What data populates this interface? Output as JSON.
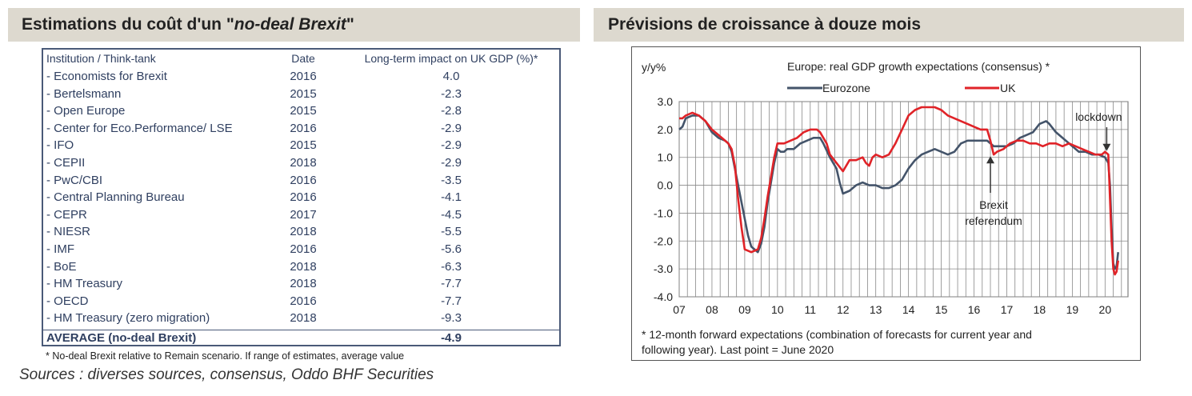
{
  "left_title_prefix": "Estimations du coût d'un \"",
  "left_title_italic": "no-deal Brexit",
  "left_title_suffix": "\"",
  "right_title": "Prévisions de croissance à douze mois",
  "table": {
    "headers": [
      "Institution / Think-tank",
      "Date",
      "Long-term impact on UK GDP (%)*"
    ],
    "rows": [
      {
        "name": "- Economists for Brexit",
        "date": "2016",
        "impact": "4.0"
      },
      {
        "name": "- Bertelsmann",
        "date": "2015",
        "impact": "-2.3"
      },
      {
        "name": "- Open Europe",
        "date": "2015",
        "impact": "-2.8"
      },
      {
        "name": "- Center for Eco.Performance/ LSE",
        "date": "2016",
        "impact": "-2.9"
      },
      {
        "name": "- IFO",
        "date": "2015",
        "impact": "-2.9"
      },
      {
        "name": "- CEPII",
        "date": "2018",
        "impact": "-2.9"
      },
      {
        "name": "- PwC/CBI",
        "date": "2016",
        "impact": "-3.5"
      },
      {
        "name": "- Central Planning Bureau",
        "date": "2016",
        "impact": "-4.1"
      },
      {
        "name": "- CEPR",
        "date": "2017",
        "impact": "-4.5"
      },
      {
        "name": "- NIESR",
        "date": "2018",
        "impact": "-5.5"
      },
      {
        "name": "- IMF",
        "date": "2016",
        "impact": "-5.6"
      },
      {
        "name": "- BoE",
        "date": "2018",
        "impact": "-6.3"
      },
      {
        "name": "- HM Treasury",
        "date": "2018",
        "impact": "-7.7"
      },
      {
        "name": "- OECD",
        "date": "2016",
        "impact": "-7.7"
      },
      {
        "name": "- HM Treasury (zero migration)",
        "date": "2018",
        "impact": "-9.3"
      }
    ],
    "average": {
      "name": "AVERAGE (no-deal Brexit)",
      "impact": "-4.9"
    },
    "footnote": "* No-deal Brexit relative to Remain scenario. If range of estimates, average value"
  },
  "sources": "Sources : diverses sources, consensus, Oddo BHF Securities",
  "chart_data": {
    "type": "line",
    "title": "Europe: real GDP growth expectations (consensus) *",
    "ylabel": "y/y%",
    "ylim": [
      -4.0,
      3.0
    ],
    "yticks": [
      "3.0",
      "2.0",
      "1.0",
      "0.0",
      "-1.0",
      "-2.0",
      "-3.0",
      "-4.0"
    ],
    "xlim": [
      2007.0,
      2020.7
    ],
    "xticks": [
      "07",
      "08",
      "09",
      "10",
      "11",
      "12",
      "13",
      "14",
      "15",
      "16",
      "17",
      "18",
      "19",
      "20"
    ],
    "grid": true,
    "legend": "top",
    "colors": {
      "Eurozone": "#44546a",
      "UK": "#e02328"
    },
    "series": [
      {
        "name": "Eurozone",
        "points": [
          [
            2007.0,
            2.0
          ],
          [
            2007.1,
            2.1
          ],
          [
            2007.2,
            2.4
          ],
          [
            2007.4,
            2.5
          ],
          [
            2007.6,
            2.5
          ],
          [
            2007.8,
            2.3
          ],
          [
            2008.0,
            1.9
          ],
          [
            2008.2,
            1.7
          ],
          [
            2008.4,
            1.6
          ],
          [
            2008.5,
            1.5
          ],
          [
            2008.6,
            1.2
          ],
          [
            2008.8,
            0.0
          ],
          [
            2009.0,
            -1.2
          ],
          [
            2009.1,
            -1.8
          ],
          [
            2009.2,
            -2.2
          ],
          [
            2009.4,
            -2.4
          ],
          [
            2009.5,
            -2.1
          ],
          [
            2009.6,
            -1.5
          ],
          [
            2009.7,
            -0.6
          ],
          [
            2009.8,
            0.1
          ],
          [
            2009.9,
            0.8
          ],
          [
            2010.0,
            1.3
          ],
          [
            2010.1,
            1.2
          ],
          [
            2010.2,
            1.2
          ],
          [
            2010.3,
            1.3
          ],
          [
            2010.5,
            1.3
          ],
          [
            2010.7,
            1.5
          ],
          [
            2010.9,
            1.6
          ],
          [
            2011.1,
            1.7
          ],
          [
            2011.3,
            1.7
          ],
          [
            2011.4,
            1.5
          ],
          [
            2011.6,
            1.0
          ],
          [
            2011.8,
            0.6
          ],
          [
            2011.9,
            0.1
          ],
          [
            2012.0,
            -0.3
          ],
          [
            2012.2,
            -0.2
          ],
          [
            2012.4,
            0.0
          ],
          [
            2012.6,
            0.1
          ],
          [
            2012.8,
            0.0
          ],
          [
            2013.0,
            0.0
          ],
          [
            2013.2,
            -0.1
          ],
          [
            2013.4,
            -0.1
          ],
          [
            2013.6,
            0.0
          ],
          [
            2013.8,
            0.2
          ],
          [
            2014.0,
            0.6
          ],
          [
            2014.2,
            0.9
          ],
          [
            2014.4,
            1.1
          ],
          [
            2014.6,
            1.2
          ],
          [
            2014.8,
            1.3
          ],
          [
            2015.0,
            1.2
          ],
          [
            2015.2,
            1.1
          ],
          [
            2015.4,
            1.2
          ],
          [
            2015.6,
            1.5
          ],
          [
            2015.8,
            1.6
          ],
          [
            2016.0,
            1.6
          ],
          [
            2016.2,
            1.6
          ],
          [
            2016.4,
            1.6
          ],
          [
            2016.5,
            1.5
          ],
          [
            2016.6,
            1.4
          ],
          [
            2016.8,
            1.4
          ],
          [
            2017.0,
            1.4
          ],
          [
            2017.2,
            1.5
          ],
          [
            2017.4,
            1.7
          ],
          [
            2017.6,
            1.8
          ],
          [
            2017.8,
            1.9
          ],
          [
            2018.0,
            2.2
          ],
          [
            2018.2,
            2.3
          ],
          [
            2018.3,
            2.2
          ],
          [
            2018.5,
            1.9
          ],
          [
            2018.7,
            1.7
          ],
          [
            2018.9,
            1.5
          ],
          [
            2019.0,
            1.4
          ],
          [
            2019.2,
            1.2
          ],
          [
            2019.4,
            1.2
          ],
          [
            2019.6,
            1.1
          ],
          [
            2019.8,
            1.1
          ],
          [
            2020.0,
            1.0
          ],
          [
            2020.1,
            0.8
          ],
          [
            2020.15,
            0.0
          ],
          [
            2020.2,
            -1.5
          ],
          [
            2020.25,
            -2.8
          ],
          [
            2020.3,
            -3.0
          ],
          [
            2020.35,
            -2.9
          ],
          [
            2020.4,
            -2.4
          ]
        ]
      },
      {
        "name": "UK",
        "points": [
          [
            2007.0,
            2.4
          ],
          [
            2007.1,
            2.4
          ],
          [
            2007.2,
            2.5
          ],
          [
            2007.4,
            2.6
          ],
          [
            2007.6,
            2.5
          ],
          [
            2007.8,
            2.3
          ],
          [
            2008.0,
            2.0
          ],
          [
            2008.2,
            1.8
          ],
          [
            2008.4,
            1.6
          ],
          [
            2008.5,
            1.5
          ],
          [
            2008.6,
            1.3
          ],
          [
            2008.7,
            0.7
          ],
          [
            2008.8,
            -0.5
          ],
          [
            2008.9,
            -1.5
          ],
          [
            2009.0,
            -2.3
          ],
          [
            2009.2,
            -2.4
          ],
          [
            2009.4,
            -2.3
          ],
          [
            2009.5,
            -1.9
          ],
          [
            2009.6,
            -1.2
          ],
          [
            2009.7,
            -0.4
          ],
          [
            2009.8,
            0.3
          ],
          [
            2009.9,
            1.0
          ],
          [
            2010.0,
            1.5
          ],
          [
            2010.2,
            1.5
          ],
          [
            2010.4,
            1.6
          ],
          [
            2010.6,
            1.7
          ],
          [
            2010.8,
            1.9
          ],
          [
            2011.0,
            2.0
          ],
          [
            2011.2,
            2.0
          ],
          [
            2011.3,
            1.9
          ],
          [
            2011.5,
            1.5
          ],
          [
            2011.6,
            1.1
          ],
          [
            2011.8,
            0.8
          ],
          [
            2012.0,
            0.5
          ],
          [
            2012.2,
            0.9
          ],
          [
            2012.4,
            0.9
          ],
          [
            2012.6,
            1.0
          ],
          [
            2012.7,
            0.8
          ],
          [
            2012.8,
            0.7
          ],
          [
            2012.9,
            1.0
          ],
          [
            2013.0,
            1.1
          ],
          [
            2013.2,
            1.0
          ],
          [
            2013.4,
            1.1
          ],
          [
            2013.6,
            1.5
          ],
          [
            2013.8,
            2.0
          ],
          [
            2014.0,
            2.5
          ],
          [
            2014.2,
            2.7
          ],
          [
            2014.4,
            2.8
          ],
          [
            2014.6,
            2.8
          ],
          [
            2014.8,
            2.8
          ],
          [
            2015.0,
            2.7
          ],
          [
            2015.2,
            2.5
          ],
          [
            2015.4,
            2.4
          ],
          [
            2015.6,
            2.3
          ],
          [
            2015.8,
            2.2
          ],
          [
            2016.0,
            2.1
          ],
          [
            2016.2,
            2.0
          ],
          [
            2016.4,
            2.0
          ],
          [
            2016.5,
            1.6
          ],
          [
            2016.6,
            1.1
          ],
          [
            2016.7,
            1.2
          ],
          [
            2016.9,
            1.3
          ],
          [
            2017.1,
            1.5
          ],
          [
            2017.3,
            1.6
          ],
          [
            2017.5,
            1.6
          ],
          [
            2017.7,
            1.5
          ],
          [
            2017.9,
            1.5
          ],
          [
            2018.1,
            1.4
          ],
          [
            2018.3,
            1.5
          ],
          [
            2018.5,
            1.5
          ],
          [
            2018.7,
            1.4
          ],
          [
            2018.9,
            1.5
          ],
          [
            2019.1,
            1.4
          ],
          [
            2019.3,
            1.3
          ],
          [
            2019.5,
            1.2
          ],
          [
            2019.7,
            1.1
          ],
          [
            2019.9,
            1.1
          ],
          [
            2020.0,
            1.2
          ],
          [
            2020.1,
            1.1
          ],
          [
            2020.15,
            -0.5
          ],
          [
            2020.2,
            -2.0
          ],
          [
            2020.25,
            -3.0
          ],
          [
            2020.3,
            -3.2
          ],
          [
            2020.35,
            -3.1
          ],
          [
            2020.4,
            -2.7
          ]
        ]
      }
    ],
    "annotations": [
      {
        "text": "lockdown",
        "x": 2020.05,
        "y": 1.2
      },
      {
        "text": "Brexit",
        "text2": "referendum",
        "x": 2016.5,
        "y": 1.1
      }
    ],
    "footnote_line1": "* 12-month forward expectations (combination of forecasts for current year and",
    "footnote_line2": "following year). Last point = June 2020"
  }
}
